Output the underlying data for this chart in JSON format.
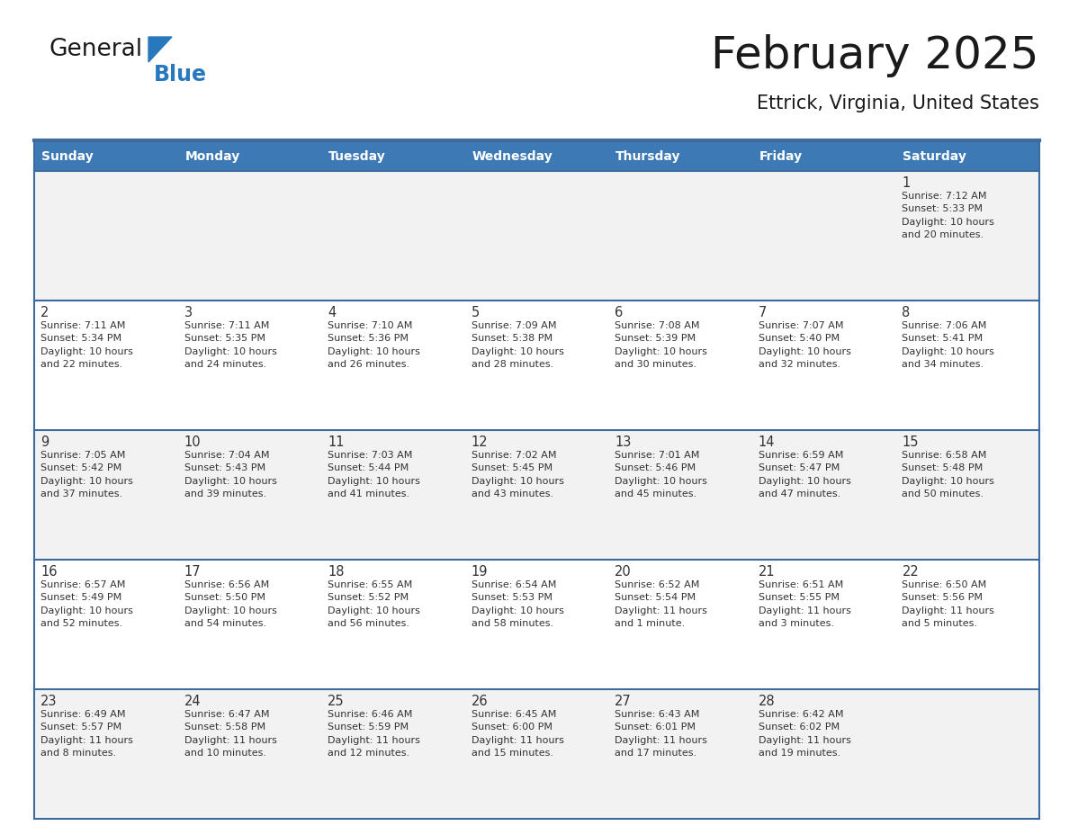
{
  "title": "February 2025",
  "subtitle": "Ettrick, Virginia, United States",
  "header_bg_color": "#3d7ab5",
  "header_text_color": "#ffffff",
  "day_names": [
    "Sunday",
    "Monday",
    "Tuesday",
    "Wednesday",
    "Thursday",
    "Friday",
    "Saturday"
  ],
  "row_odd_bg": "#f2f2f2",
  "row_even_bg": "#ffffff",
  "cell_border_color": "#3d6b9e",
  "day_number_color": "#333333",
  "info_text_color": "#333333",
  "logo_general_color": "#1a1a1a",
  "logo_blue_color": "#2878be",
  "logo_triangle_color": "#2878be",
  "title_color": "#1a1a1a",
  "subtitle_color": "#1a1a1a",
  "calendar_data": [
    [
      {
        "day": null,
        "info": null
      },
      {
        "day": null,
        "info": null
      },
      {
        "day": null,
        "info": null
      },
      {
        "day": null,
        "info": null
      },
      {
        "day": null,
        "info": null
      },
      {
        "day": null,
        "info": null
      },
      {
        "day": 1,
        "info": "Sunrise: 7:12 AM\nSunset: 5:33 PM\nDaylight: 10 hours\nand 20 minutes."
      }
    ],
    [
      {
        "day": 2,
        "info": "Sunrise: 7:11 AM\nSunset: 5:34 PM\nDaylight: 10 hours\nand 22 minutes."
      },
      {
        "day": 3,
        "info": "Sunrise: 7:11 AM\nSunset: 5:35 PM\nDaylight: 10 hours\nand 24 minutes."
      },
      {
        "day": 4,
        "info": "Sunrise: 7:10 AM\nSunset: 5:36 PM\nDaylight: 10 hours\nand 26 minutes."
      },
      {
        "day": 5,
        "info": "Sunrise: 7:09 AM\nSunset: 5:38 PM\nDaylight: 10 hours\nand 28 minutes."
      },
      {
        "day": 6,
        "info": "Sunrise: 7:08 AM\nSunset: 5:39 PM\nDaylight: 10 hours\nand 30 minutes."
      },
      {
        "day": 7,
        "info": "Sunrise: 7:07 AM\nSunset: 5:40 PM\nDaylight: 10 hours\nand 32 minutes."
      },
      {
        "day": 8,
        "info": "Sunrise: 7:06 AM\nSunset: 5:41 PM\nDaylight: 10 hours\nand 34 minutes."
      }
    ],
    [
      {
        "day": 9,
        "info": "Sunrise: 7:05 AM\nSunset: 5:42 PM\nDaylight: 10 hours\nand 37 minutes."
      },
      {
        "day": 10,
        "info": "Sunrise: 7:04 AM\nSunset: 5:43 PM\nDaylight: 10 hours\nand 39 minutes."
      },
      {
        "day": 11,
        "info": "Sunrise: 7:03 AM\nSunset: 5:44 PM\nDaylight: 10 hours\nand 41 minutes."
      },
      {
        "day": 12,
        "info": "Sunrise: 7:02 AM\nSunset: 5:45 PM\nDaylight: 10 hours\nand 43 minutes."
      },
      {
        "day": 13,
        "info": "Sunrise: 7:01 AM\nSunset: 5:46 PM\nDaylight: 10 hours\nand 45 minutes."
      },
      {
        "day": 14,
        "info": "Sunrise: 6:59 AM\nSunset: 5:47 PM\nDaylight: 10 hours\nand 47 minutes."
      },
      {
        "day": 15,
        "info": "Sunrise: 6:58 AM\nSunset: 5:48 PM\nDaylight: 10 hours\nand 50 minutes."
      }
    ],
    [
      {
        "day": 16,
        "info": "Sunrise: 6:57 AM\nSunset: 5:49 PM\nDaylight: 10 hours\nand 52 minutes."
      },
      {
        "day": 17,
        "info": "Sunrise: 6:56 AM\nSunset: 5:50 PM\nDaylight: 10 hours\nand 54 minutes."
      },
      {
        "day": 18,
        "info": "Sunrise: 6:55 AM\nSunset: 5:52 PM\nDaylight: 10 hours\nand 56 minutes."
      },
      {
        "day": 19,
        "info": "Sunrise: 6:54 AM\nSunset: 5:53 PM\nDaylight: 10 hours\nand 58 minutes."
      },
      {
        "day": 20,
        "info": "Sunrise: 6:52 AM\nSunset: 5:54 PM\nDaylight: 11 hours\nand 1 minute."
      },
      {
        "day": 21,
        "info": "Sunrise: 6:51 AM\nSunset: 5:55 PM\nDaylight: 11 hours\nand 3 minutes."
      },
      {
        "day": 22,
        "info": "Sunrise: 6:50 AM\nSunset: 5:56 PM\nDaylight: 11 hours\nand 5 minutes."
      }
    ],
    [
      {
        "day": 23,
        "info": "Sunrise: 6:49 AM\nSunset: 5:57 PM\nDaylight: 11 hours\nand 8 minutes."
      },
      {
        "day": 24,
        "info": "Sunrise: 6:47 AM\nSunset: 5:58 PM\nDaylight: 11 hours\nand 10 minutes."
      },
      {
        "day": 25,
        "info": "Sunrise: 6:46 AM\nSunset: 5:59 PM\nDaylight: 11 hours\nand 12 minutes."
      },
      {
        "day": 26,
        "info": "Sunrise: 6:45 AM\nSunset: 6:00 PM\nDaylight: 11 hours\nand 15 minutes."
      },
      {
        "day": 27,
        "info": "Sunrise: 6:43 AM\nSunset: 6:01 PM\nDaylight: 11 hours\nand 17 minutes."
      },
      {
        "day": 28,
        "info": "Sunrise: 6:42 AM\nSunset: 6:02 PM\nDaylight: 11 hours\nand 19 minutes."
      },
      {
        "day": null,
        "info": null
      }
    ]
  ]
}
